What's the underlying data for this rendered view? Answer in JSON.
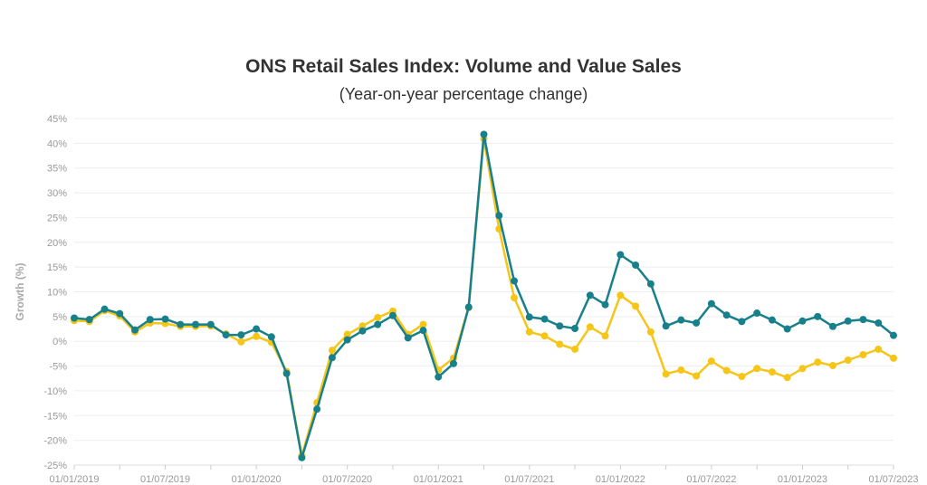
{
  "chart_data": {
    "type": "line",
    "title": "ONS Retail Sales Index: Volume and Value Sales",
    "subtitle": "(Year-on-year percentage change)",
    "ylabel": "Growth (%)",
    "xlabel": "",
    "ylim": [
      -25,
      45
    ],
    "yticks": [
      "45%",
      "40%",
      "35%",
      "30%",
      "25%",
      "20%",
      "15%",
      "10%",
      "5%",
      "0%",
      "-5%",
      "-10%",
      "-15%",
      "-20%",
      "-25%"
    ],
    "ytick_values": [
      45,
      40,
      35,
      30,
      25,
      20,
      15,
      10,
      5,
      0,
      -5,
      -10,
      -15,
      -20,
      -25
    ],
    "x_start": "01/01/2019",
    "x_end": "01/07/2023",
    "xticks": [
      "01/01/2019",
      "01/07/2019",
      "01/01/2020",
      "01/07/2020",
      "01/01/2021",
      "01/07/2021",
      "01/01/2022",
      "01/07/2022",
      "01/01/2023",
      "01/07/2023"
    ],
    "grid": true,
    "series": [
      {
        "color": "#17808a",
        "values": [
          4.7,
          4.4,
          6.5,
          5.6,
          2.3,
          4.4,
          4.5,
          3.4,
          3.4,
          3.4,
          1.3,
          1.3,
          2.5,
          0.9,
          -6.5,
          -23.5,
          -13.7,
          -3.3,
          0.3,
          2.1,
          3.4,
          5.2,
          0.7,
          2.2,
          -7.2,
          -4.5,
          6.9,
          41.8,
          25.4,
          12.2,
          4.9,
          4.5,
          3.1,
          2.6,
          9.3,
          7.4,
          17.5,
          15.4,
          11.6,
          3.1,
          4.3,
          3.7,
          7.6,
          5.3,
          4.0,
          5.7,
          4.3,
          2.5,
          4.1,
          5.0,
          3.0,
          4.1,
          4.4,
          3.7,
          1.2
        ]
      },
      {
        "color": "#f5c518",
        "values": [
          4.2,
          4.0,
          6.2,
          5.1,
          1.9,
          3.7,
          3.6,
          3.0,
          3.0,
          3.1,
          1.5,
          -0.1,
          1.0,
          -0.2,
          -6.1,
          -23.1,
          -12.4,
          -1.8,
          1.4,
          3.1,
          4.8,
          6.1,
          1.4,
          3.4,
          -5.8,
          -3.4,
          6.8,
          40.9,
          22.7,
          8.8,
          1.9,
          1.1,
          -0.6,
          -1.6,
          2.9,
          1.1,
          9.3,
          7.1,
          1.9,
          -6.6,
          -5.8,
          -7.0,
          -4.0,
          -5.9,
          -7.1,
          -5.5,
          -6.2,
          -7.3,
          -5.5,
          -4.2,
          -4.9,
          -3.8,
          -2.7,
          -1.6,
          -3.4
        ]
      }
    ]
  }
}
